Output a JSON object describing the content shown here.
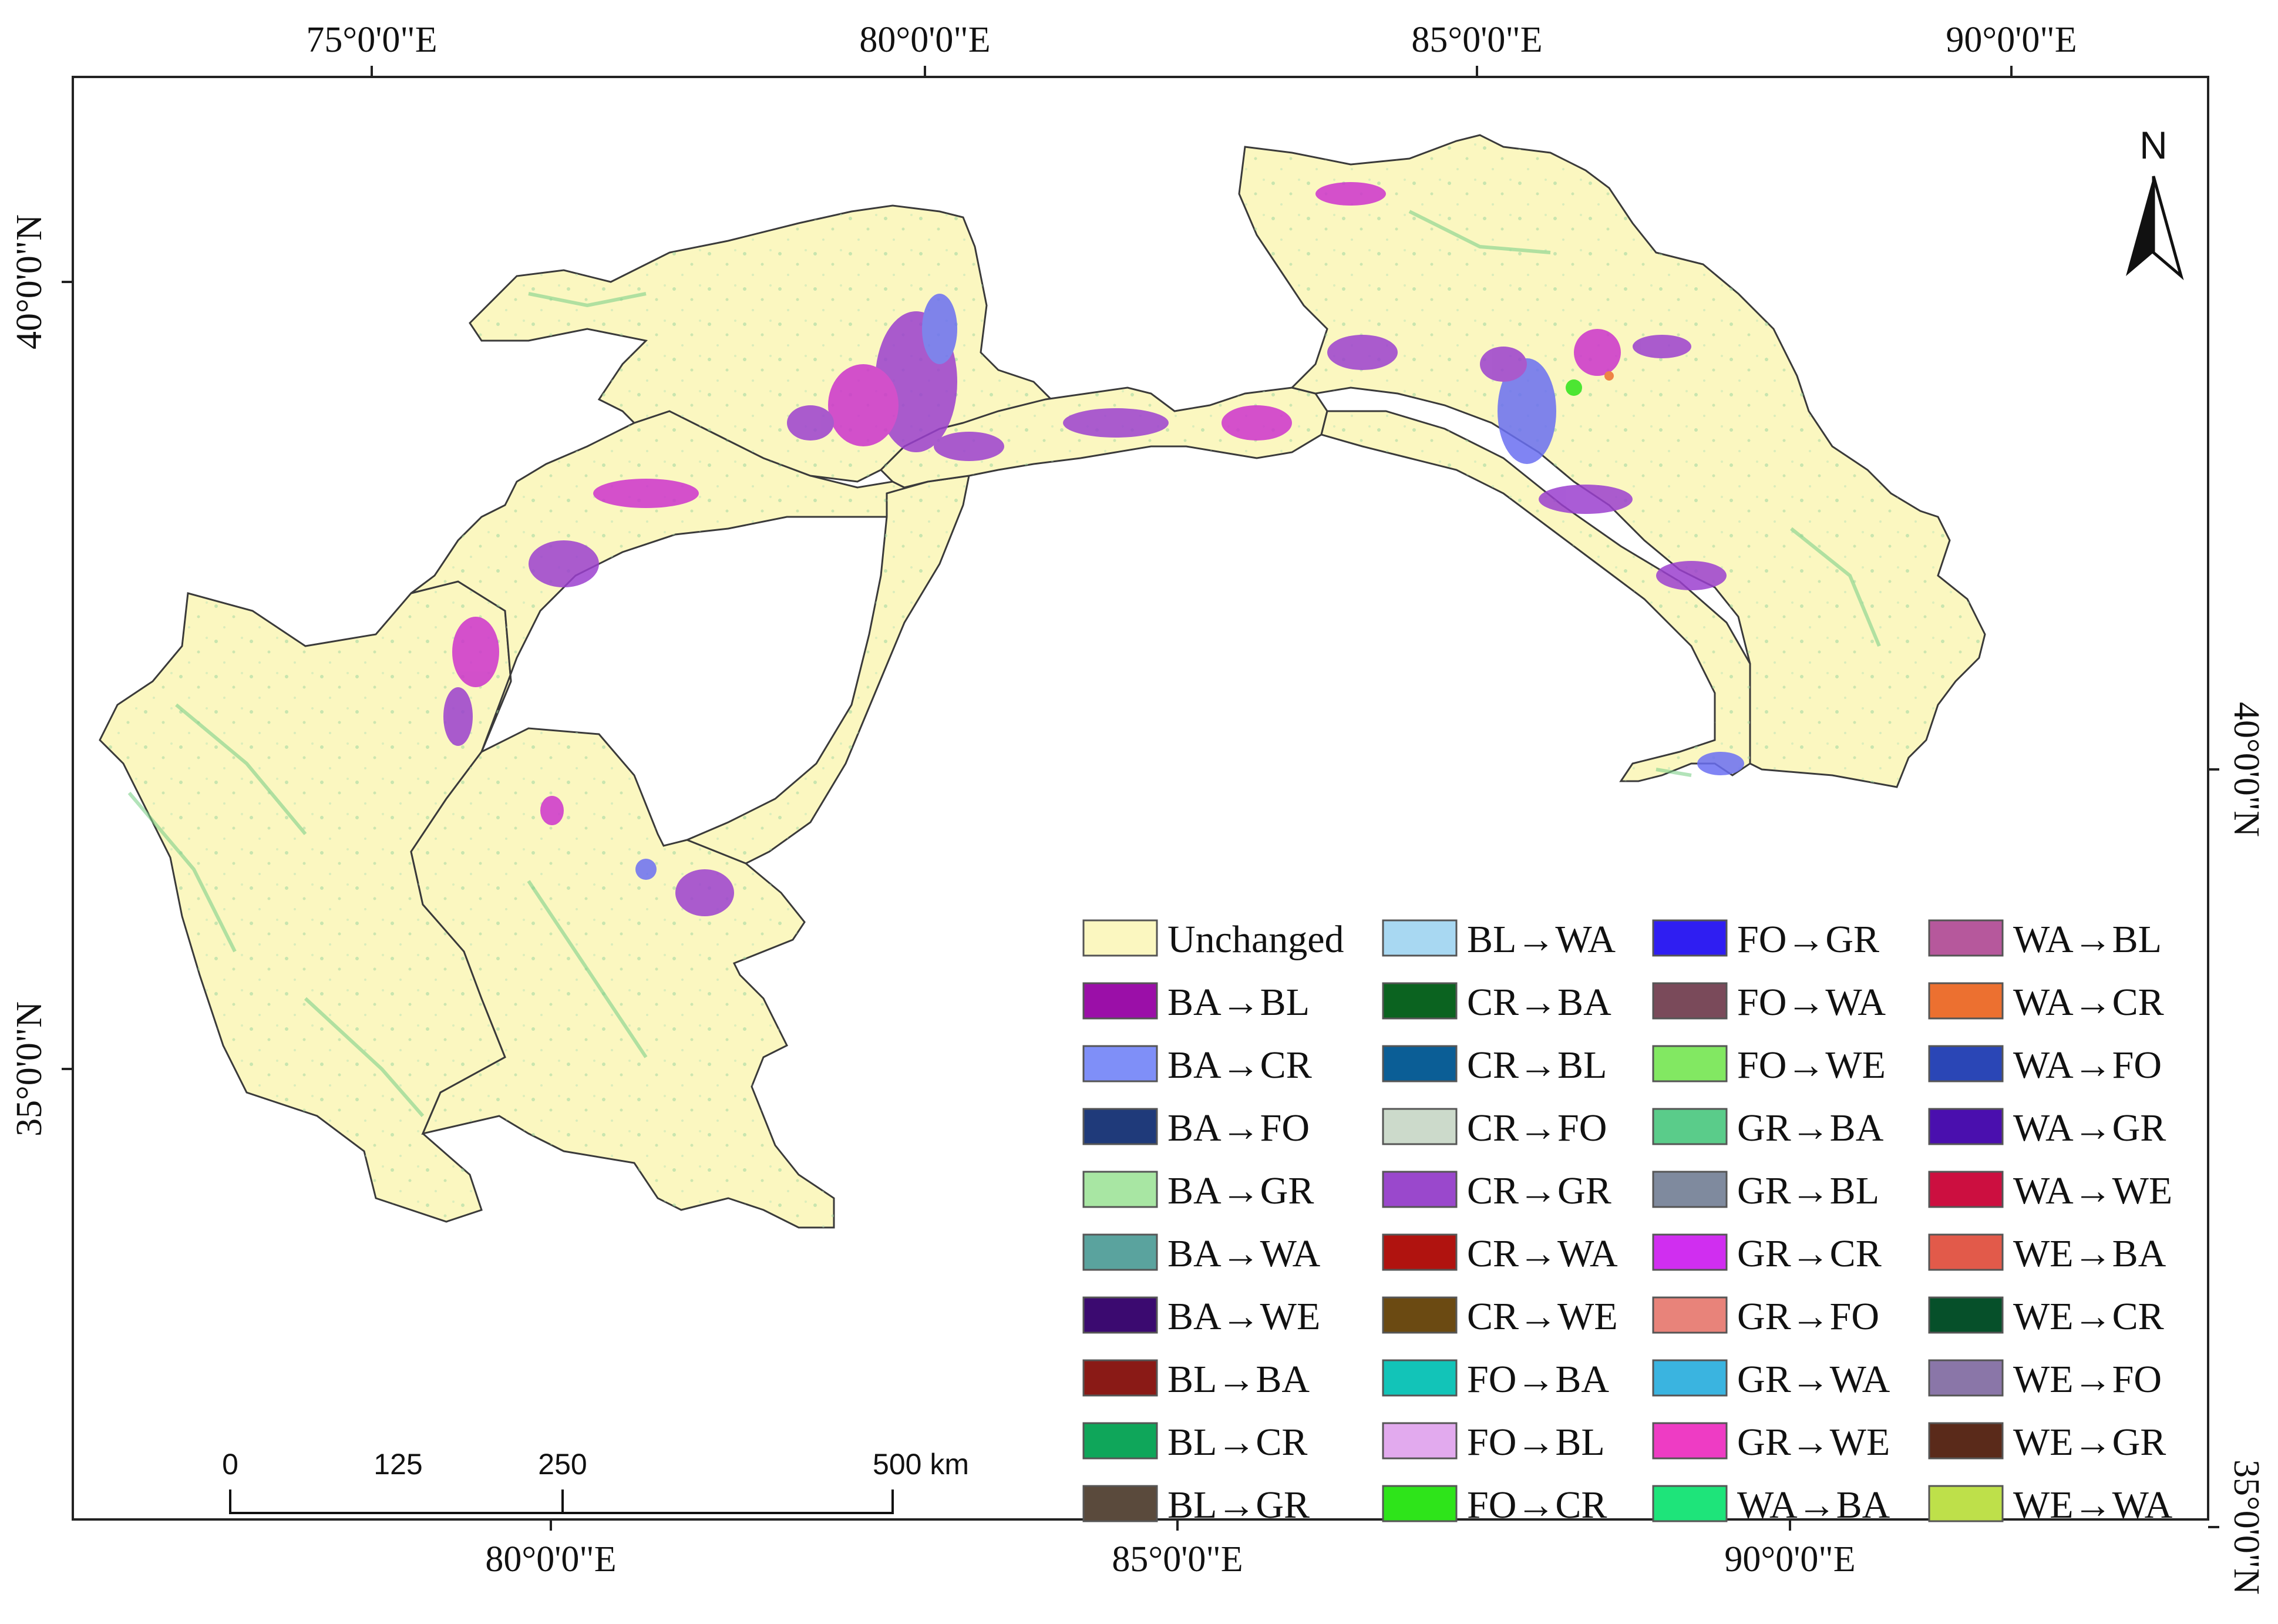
{
  "map": {
    "top_lon_labels": [
      "75°0'0\"E",
      "80°0'0\"E",
      "85°0'0\"E",
      "90°0'0\"E"
    ],
    "bottom_lon_labels": [
      "80°0'0\"E",
      "85°0'0\"E",
      "90°0'0\"E"
    ],
    "left_lat_labels": [
      "40°0'0\"N",
      "35°0'0\"N"
    ],
    "right_lat_labels": [
      "40°0'0\"N",
      "35°0'0\"N"
    ],
    "north_label": "N",
    "colors": {
      "land": "#fbf7c0",
      "outline": "#3a3a3a",
      "purple": "#9b3fcf",
      "magenta": "#cc33cc",
      "blue": "#6a6ff2",
      "green": "#7fd08a",
      "teal": "#5aa9a0"
    }
  },
  "scale_bar": {
    "labels": [
      "0",
      "125",
      "250",
      "500 km"
    ]
  },
  "legend": {
    "items": [
      {
        "label": "Unchanged",
        "color": "#fbf7c0"
      },
      {
        "label": "BA→BL",
        "color": "#9b0fa8"
      },
      {
        "label": "BA→CR",
        "color": "#7f8ff8"
      },
      {
        "label": "BA→FO",
        "color": "#1f3a7a"
      },
      {
        "label": "BA→GR",
        "color": "#a8e6a3"
      },
      {
        "label": "BA→WA",
        "color": "#5aa39e"
      },
      {
        "label": "BA→WE",
        "color": "#3b0a70"
      },
      {
        "label": "BL→BA",
        "color": "#8a1a16"
      },
      {
        "label": "BL→CR",
        "color": "#0fa65a"
      },
      {
        "label": "BL→GR",
        "color": "#5a4a3c"
      },
      {
        "label": "BL→WA",
        "color": "#a8d8f2"
      },
      {
        "label": "CR→BA",
        "color": "#0b6320"
      },
      {
        "label": "CR→BL",
        "color": "#0b5e96"
      },
      {
        "label": "CR→FO",
        "color": "#ccdacb"
      },
      {
        "label": "CR→GR",
        "color": "#9a48cc"
      },
      {
        "label": "CR→WA",
        "color": "#b0130f"
      },
      {
        "label": "CR→WE",
        "color": "#6b4a12"
      },
      {
        "label": "FO→BA",
        "color": "#12c4b8"
      },
      {
        "label": "FO→BL",
        "color": "#e2aaee"
      },
      {
        "label": "FO→CR",
        "color": "#2ee41a"
      },
      {
        "label": "FO→GR",
        "color": "#2f1ef2"
      },
      {
        "label": "FO→WA",
        "color": "#7a4a5a"
      },
      {
        "label": "FO→WE",
        "color": "#82e862"
      },
      {
        "label": "GR→BA",
        "color": "#5acc8a"
      },
      {
        "label": "GR→BL",
        "color": "#7f8a9e"
      },
      {
        "label": "GR→CR",
        "color": "#d02ef0"
      },
      {
        "label": "GR→FO",
        "color": "#e8837a"
      },
      {
        "label": "GR→WA",
        "color": "#3ab4e0"
      },
      {
        "label": "GR→WE",
        "color": "#ee3cc4"
      },
      {
        "label": "WA→BA",
        "color": "#1ee47a"
      },
      {
        "label": "WA→BL",
        "color": "#b6589c"
      },
      {
        "label": "WA→CR",
        "color": "#ec7030"
      },
      {
        "label": "WA→FO",
        "color": "#2a46b6"
      },
      {
        "label": "WA→GR",
        "color": "#4a0fae"
      },
      {
        "label": "WA→WE",
        "color": "#cc0f40"
      },
      {
        "label": "WE→BA",
        "color": "#e25a4a"
      },
      {
        "label": "WE→CR",
        "color": "#06502a"
      },
      {
        "label": "WE→FO",
        "color": "#8a76a8"
      },
      {
        "label": "WE→GR",
        "color": "#5a2a1a"
      },
      {
        "label": "WE→WA",
        "color": "#bee04a"
      }
    ]
  }
}
